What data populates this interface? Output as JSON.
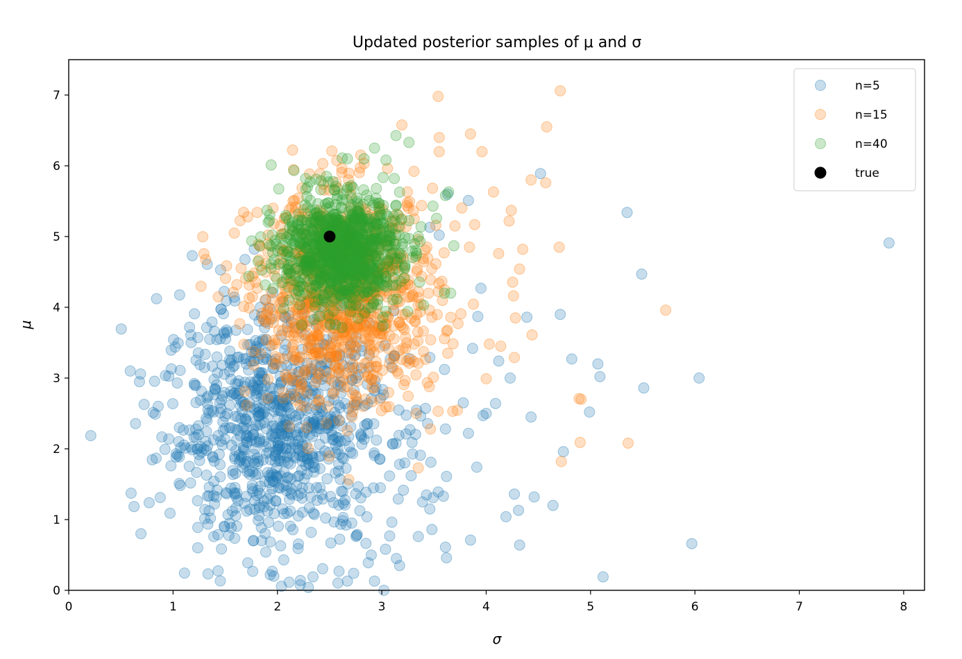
{
  "chart_data": {
    "type": "scatter",
    "title": "Updated posterior samples of μ and σ",
    "xlabel": "σ",
    "ylabel": "μ",
    "xlim": [
      0,
      8.2
    ],
    "ylim": [
      0,
      7.5
    ],
    "xticks": [
      0,
      1,
      2,
      3,
      4,
      5,
      6,
      7,
      8
    ],
    "yticks": [
      0,
      1,
      2,
      3,
      4,
      5,
      6,
      7
    ],
    "grid": false,
    "legend_position": "top-right",
    "series": [
      {
        "name": "n=5",
        "color": "#1f77b4",
        "alpha": 0.25,
        "cluster": {
          "center_sigma": 2.0,
          "center_mu": 2.3,
          "spread_sigma": 0.55,
          "spread_mu": 0.85,
          "count": 900
        },
        "points": [
          [
            1.04,
            2.93
          ],
          [
            1.03,
            1.93
          ],
          [
            1.06,
            2.3
          ],
          [
            1.33,
            1.33
          ],
          [
            1.39,
            0.76
          ],
          [
            1.51,
            4.09
          ],
          [
            4.52,
            5.89
          ],
          [
            5.35,
            5.34
          ],
          [
            7.86,
            4.91
          ],
          [
            5.49,
            4.47
          ],
          [
            6.04,
            3.0
          ],
          [
            5.51,
            2.86
          ],
          [
            5.07,
            3.2
          ],
          [
            5.09,
            3.02
          ],
          [
            4.82,
            3.27
          ],
          [
            4.99,
            2.52
          ],
          [
            4.74,
            1.96
          ],
          [
            5.12,
            0.19
          ],
          [
            5.97,
            0.66
          ],
          [
            4.64,
            1.2
          ],
          [
            4.46,
            1.32
          ],
          [
            4.27,
            1.36
          ],
          [
            4.31,
            1.13
          ],
          [
            4.32,
            0.64
          ],
          [
            4.19,
            1.04
          ],
          [
            3.85,
            0.71
          ],
          [
            3.62,
            0.46
          ],
          [
            3.61,
            0.61
          ],
          [
            3.02,
            0.0
          ],
          [
            3.91,
            1.74
          ],
          [
            4.12,
            3.24
          ],
          [
            4.23,
            3.0
          ],
          [
            4.43,
            2.45
          ],
          [
            4.09,
            2.64
          ],
          [
            4.0,
            2.5
          ],
          [
            3.97,
            2.47
          ],
          [
            3.87,
            3.42
          ],
          [
            4.39,
            3.86
          ],
          [
            4.71,
            3.9
          ],
          [
            3.95,
            4.27
          ],
          [
            3.63,
            5.6
          ],
          [
            3.83,
            5.51
          ],
          [
            3.55,
            5.02
          ],
          [
            3.46,
            5.13
          ],
          [
            3.92,
            3.87
          ],
          [
            3.78,
            2.65
          ],
          [
            3.83,
            2.22
          ],
          [
            3.62,
            1.61
          ],
          [
            3.61,
            2.28
          ],
          [
            3.37,
            1.91
          ],
          [
            3.47,
            1.81
          ],
          [
            3.39,
            1.25
          ],
          [
            3.46,
            1.15
          ],
          [
            3.59,
            1.33
          ],
          [
            3.54,
            1.39
          ],
          [
            3.35,
            0.76
          ],
          [
            3.48,
            0.86
          ],
          [
            3.17,
            0.35
          ],
          [
            3.14,
            0.45
          ],
          [
            3.27,
            2.27
          ],
          [
            3.29,
            2.09
          ],
          [
            3.17,
            1.78
          ],
          [
            3.22,
            1.8
          ],
          [
            2.22,
            0.14
          ],
          [
            2.06,
            0.43
          ],
          [
            1.95,
            0.27
          ],
          [
            2.34,
            0.19
          ],
          [
            2.59,
            0.27
          ],
          [
            2.67,
            0.13
          ],
          [
            2.73,
            0.24
          ],
          [
            2.87,
            0.39
          ],
          [
            2.93,
            0.13
          ]
        ]
      },
      {
        "name": "n=15",
        "color": "#ff7f0e",
        "alpha": 0.25,
        "cluster": {
          "center_sigma": 2.65,
          "center_mu": 4.1,
          "spread_sigma": 0.45,
          "spread_mu": 0.75,
          "count": 900
        },
        "points": [
          [
            3.54,
            6.98
          ],
          [
            4.71,
            7.06
          ],
          [
            4.58,
            6.55
          ],
          [
            3.85,
            6.45
          ],
          [
            3.55,
            6.4
          ],
          [
            3.55,
            6.2
          ],
          [
            3.96,
            6.2
          ],
          [
            4.43,
            5.8
          ],
          [
            4.57,
            5.76
          ],
          [
            4.07,
            5.63
          ],
          [
            4.24,
            5.37
          ],
          [
            4.22,
            5.22
          ],
          [
            4.12,
            4.76
          ],
          [
            4.35,
            4.82
          ],
          [
            4.7,
            4.85
          ],
          [
            4.32,
            4.54
          ],
          [
            5.72,
            3.96
          ],
          [
            4.28,
            3.85
          ],
          [
            4.44,
            3.61
          ],
          [
            4.27,
            3.29
          ],
          [
            4.03,
            3.48
          ],
          [
            4.14,
            3.45
          ],
          [
            4.0,
            2.99
          ],
          [
            4.72,
            1.82
          ],
          [
            4.9,
            2.09
          ],
          [
            4.89,
            2.71
          ],
          [
            4.91,
            2.7
          ],
          [
            5.36,
            2.08
          ],
          [
            3.68,
            2.53
          ],
          [
            3.54,
            2.53
          ],
          [
            3.35,
            1.73
          ],
          [
            3.33,
            2.5
          ],
          [
            3.04,
            2.59
          ],
          [
            2.74,
            2.66
          ],
          [
            1.76,
            4.44
          ],
          [
            1.73,
            4.13
          ],
          [
            1.89,
            4.62
          ],
          [
            1.73,
            3.99
          ],
          [
            3.73,
            3.77
          ],
          [
            3.84,
            4.85
          ],
          [
            3.89,
            5.17
          ],
          [
            3.7,
            5.15
          ]
        ]
      },
      {
        "name": "n=40",
        "color": "#2ca02c",
        "alpha": 0.25,
        "cluster": {
          "center_sigma": 2.6,
          "center_mu": 4.8,
          "spread_sigma": 0.28,
          "spread_mu": 0.38,
          "count": 1000
        },
        "points": [
          [
            2.93,
            6.25
          ],
          [
            3.26,
            6.33
          ],
          [
            3.04,
            6.08
          ],
          [
            2.62,
            6.11
          ],
          [
            2.67,
            6.1
          ],
          [
            2.83,
            6.1
          ],
          [
            1.9,
            5.37
          ],
          [
            1.83,
            4.87
          ],
          [
            2.06,
            3.98
          ],
          [
            3.4,
            4.03
          ],
          [
            3.6,
            4.2
          ],
          [
            3.66,
            4.2
          ],
          [
            3.69,
            4.87
          ],
          [
            3.64,
            5.63
          ],
          [
            3.61,
            5.58
          ],
          [
            3.49,
            5.43
          ],
          [
            3.35,
            5.0
          ],
          [
            2.27,
            5.82
          ],
          [
            2.37,
            5.81
          ],
          [
            2.47,
            5.85
          ],
          [
            3.12,
            5.82
          ]
        ]
      },
      {
        "name": "true",
        "color": "#000000",
        "alpha": 1,
        "points": [
          [
            2.5,
            5.0
          ]
        ]
      }
    ]
  }
}
